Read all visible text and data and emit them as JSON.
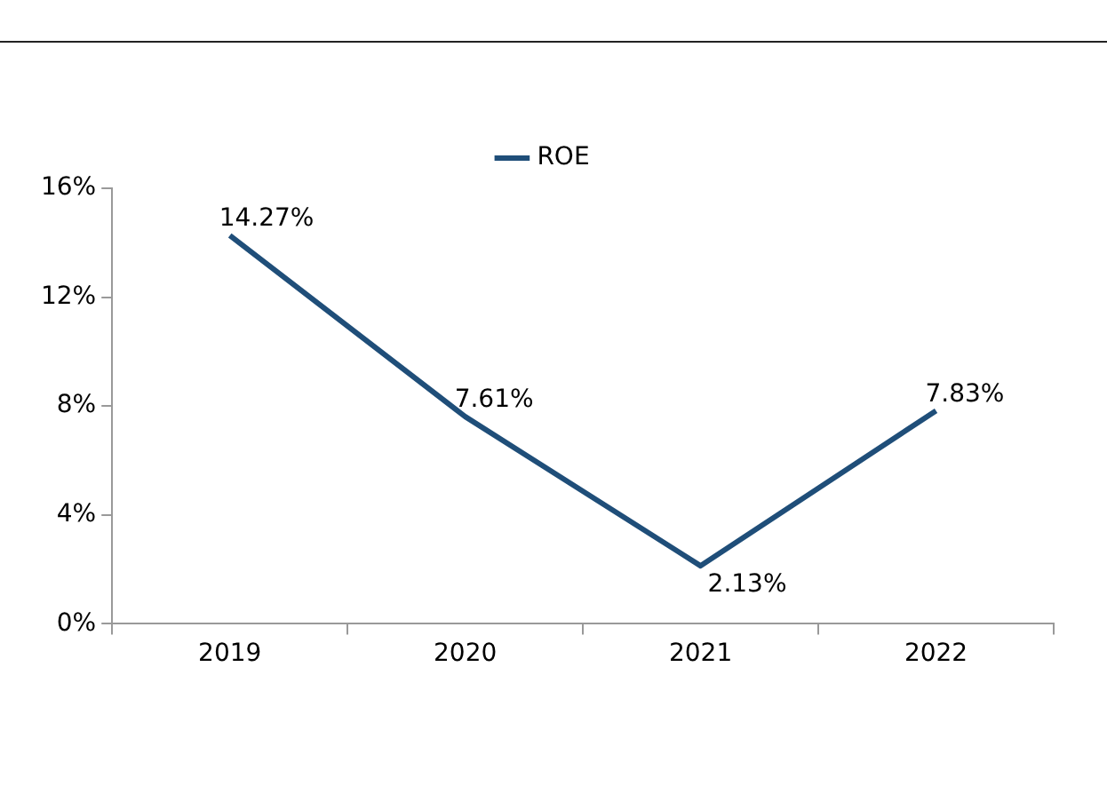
{
  "chart_data": {
    "type": "line",
    "categories": [
      "2019",
      "2020",
      "2021",
      "2022"
    ],
    "series": [
      {
        "name": "ROE",
        "color": "#1f4e79",
        "values": [
          14.27,
          7.61,
          2.13,
          7.83
        ],
        "value_labels": [
          "14.27%",
          "7.61%",
          "2.13%",
          "7.83%"
        ]
      }
    ],
    "ylim": [
      0,
      16
    ],
    "yticks": [
      {
        "value": 0,
        "label": "0%"
      },
      {
        "value": 4,
        "label": "4%"
      },
      {
        "value": 8,
        "label": "8%"
      },
      {
        "value": 12,
        "label": "12%"
      },
      {
        "value": 16,
        "label": "16%"
      }
    ],
    "grid": false,
    "legend": "top",
    "marker": "none",
    "line_style": "solid"
  }
}
